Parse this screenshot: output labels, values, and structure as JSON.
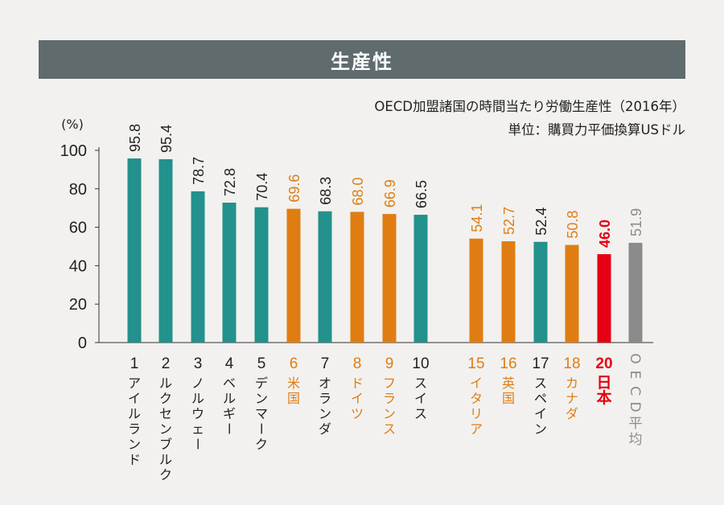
{
  "header": {
    "title": "生産性",
    "subtitle": "OECD加盟諸国の時間当たり労働生産性（2016年）",
    "unit_note": "単位：購買力平価換算USドル"
  },
  "colors": {
    "teal": "#23918c",
    "orange": "#e07d12",
    "red": "#e60013",
    "gray": "#8b8b8b",
    "title_bg": "#5f6b6d"
  },
  "chart_data": {
    "type": "bar",
    "title": "生産性",
    "subtitle": "OECD加盟諸国の時間当たり労働生産性（2016年）",
    "ylabel": "(%)",
    "ylim": [
      0,
      100
    ],
    "yticks": [
      0,
      20,
      40,
      60,
      80,
      100
    ],
    "grid": false,
    "bars": [
      {
        "rank": "1",
        "country": "アイルランド",
        "value": 95.8,
        "label": "95.8",
        "color": "teal"
      },
      {
        "rank": "2",
        "country": "ルクセンブルク",
        "value": 95.4,
        "label": "95.4",
        "color": "teal"
      },
      {
        "rank": "3",
        "country": "ノルウェー",
        "value": 78.7,
        "label": "78.7",
        "color": "teal"
      },
      {
        "rank": "4",
        "country": "ベルギー",
        "value": 72.8,
        "label": "72.8",
        "color": "teal"
      },
      {
        "rank": "5",
        "country": "デンマーク",
        "value": 70.4,
        "label": "70.4",
        "color": "teal"
      },
      {
        "rank": "6",
        "country": "米国",
        "value": 69.6,
        "label": "69.6",
        "color": "orange"
      },
      {
        "rank": "7",
        "country": "オランダ",
        "value": 68.3,
        "label": "68.3",
        "color": "teal"
      },
      {
        "rank": "8",
        "country": "ドイツ",
        "value": 68.0,
        "label": "68.0",
        "color": "orange"
      },
      {
        "rank": "9",
        "country": "フランス",
        "value": 66.9,
        "label": "66.9",
        "color": "orange"
      },
      {
        "rank": "10",
        "country": "スイス",
        "value": 66.5,
        "label": "66.5",
        "color": "teal"
      },
      {
        "rank": "15",
        "country": "イタリア",
        "value": 54.1,
        "label": "54.1",
        "color": "orange"
      },
      {
        "rank": "16",
        "country": "英国",
        "value": 52.7,
        "label": "52.7",
        "color": "orange"
      },
      {
        "rank": "17",
        "country": "スペイン",
        "value": 52.4,
        "label": "52.4",
        "color": "teal"
      },
      {
        "rank": "18",
        "country": "カナダ",
        "value": 50.8,
        "label": "50.8",
        "color": "orange"
      },
      {
        "rank": "20",
        "country": "日本",
        "value": 46.0,
        "label": "46.0",
        "color": "red"
      },
      {
        "rank": "OECD平均",
        "country": "",
        "value": 51.9,
        "label": "51.9",
        "color": "gray"
      }
    ]
  }
}
